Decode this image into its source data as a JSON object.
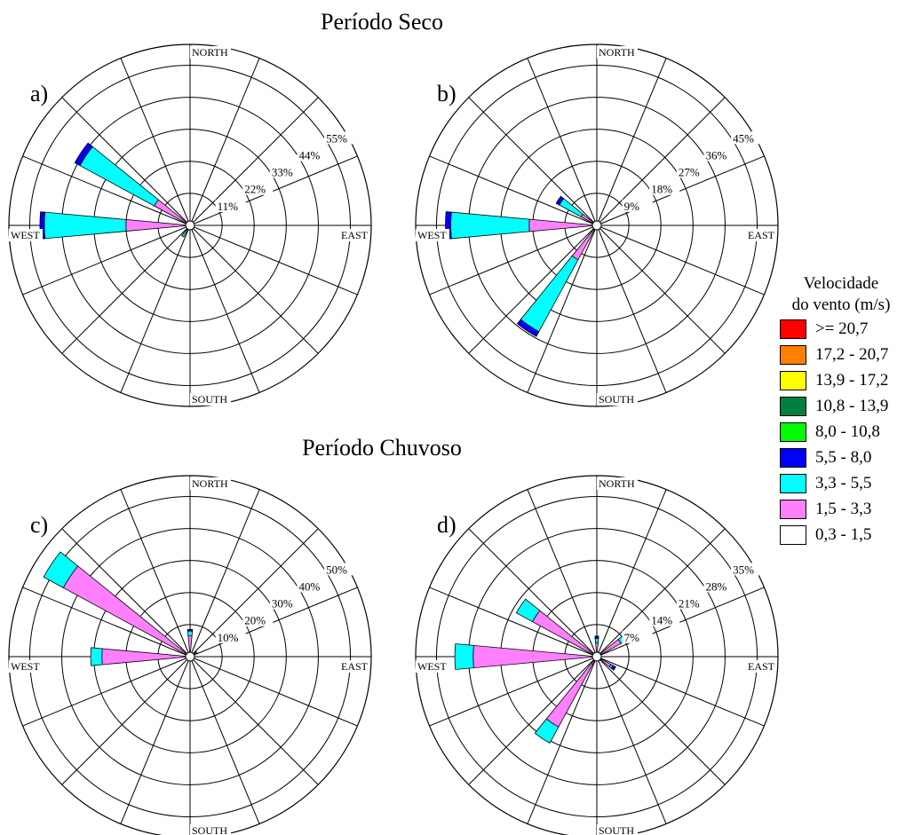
{
  "titles": {
    "dry": "Período Seco",
    "wet": "Período Chuvoso"
  },
  "legend": {
    "title_line1": "Velocidade",
    "title_line2": "do vento (m/s)",
    "items": [
      {
        "label": ">= 20,7",
        "color": "#ff0000"
      },
      {
        "label": "17,2 - 20,7",
        "color": "#ff7f00"
      },
      {
        "label": "13,9 - 17,2",
        "color": "#ffff00"
      },
      {
        "label": "10,8 - 13,9",
        "color": "#008040"
      },
      {
        "label": "8,0 - 10,8",
        "color": "#00ff00"
      },
      {
        "label": "5,5 - 8,0",
        "color": "#0000ff"
      },
      {
        "label": "3,3 - 5,5",
        "color": "#00ffff"
      },
      {
        "label": "1,5 - 3,3",
        "color": "#ff80ff"
      },
      {
        "label": "0,3 - 1,5",
        "color": "#ffffff"
      }
    ]
  },
  "chart_data": [
    {
      "type": "wind-rose",
      "panel_label": "a)",
      "direction_labels": {
        "north": "NORTH",
        "south": "SOUTH",
        "east": "EAST",
        "west": "WEST"
      },
      "ring_labels": [
        "11%",
        "22%",
        "33%",
        "44%",
        "55%"
      ],
      "max_percent": 55,
      "sectors": [
        {
          "direction_deg": 303.75,
          "bands": {
            "1,5 - 3,3": 14,
            "3,3 - 5,5": 29,
            "5,5 - 8,0": 2
          }
        },
        {
          "direction_deg": 270,
          "bands": {
            "1,5 - 3,3": 22,
            "3,3 - 5,5": 28,
            "5,5 - 8,0": 1.5
          }
        },
        {
          "direction_deg": 213.75,
          "bands": {
            "1,5 - 3,3": 1,
            "3,3 - 5,5": 3.5
          }
        }
      ]
    },
    {
      "type": "wind-rose",
      "panel_label": "b)",
      "direction_labels": {
        "north": "NORTH",
        "south": "SOUTH",
        "east": "EAST",
        "west": "WEST"
      },
      "ring_labels": [
        "9%",
        "18%",
        "27%",
        "36%",
        "45%"
      ],
      "max_percent": 45,
      "sectors": [
        {
          "direction_deg": 303.75,
          "bands": {
            "1,5 - 3,3": 5,
            "3,3 - 5,5": 7,
            "5,5 - 8,0": 1
          }
        },
        {
          "direction_deg": 270,
          "bands": {
            "1,5 - 3,3": 19,
            "3,3 - 5,5": 22,
            "5,5 - 8,0": 1.5
          }
        },
        {
          "direction_deg": 213.75,
          "bands": {
            "1,5 - 3,3": 11,
            "3,3 - 5,5": 23,
            "5,5 - 8,0": 1.5
          }
        }
      ]
    },
    {
      "type": "wind-rose",
      "panel_label": "c)",
      "direction_labels": {
        "north": "NORTH",
        "south": "SOUTH",
        "east": "EAST",
        "west": "WEST"
      },
      "ring_labels": [
        "10%",
        "20%",
        "30%",
        "40%",
        "50%"
      ],
      "max_percent": 50,
      "sectors": [
        {
          "direction_deg": 303.75,
          "bands": {
            "1,5 - 3,3": 45,
            "3,3 - 5,5": 7
          }
        },
        {
          "direction_deg": 270,
          "bands": {
            "1,5 - 3,3": 27,
            "3,3 - 5,5": 3.5,
            "0,3 - 1,5": 0.5
          }
        },
        {
          "direction_deg": 0,
          "bands": {
            "1,5 - 3,3": 6.5,
            "3,3 - 5,5": 1.5,
            "5,5 - 8,0": 0.5
          }
        },
        {
          "direction_deg": 56.25,
          "bands": {
            "1,5 - 3,3": 1.5,
            "3,3 - 5,5": 1
          }
        }
      ]
    },
    {
      "type": "wind-rose",
      "panel_label": "d)",
      "direction_labels": {
        "north": "NORTH",
        "south": "SOUTH",
        "east": "EAST",
        "west": "WEST"
      },
      "ring_labels": [
        "7%",
        "14%",
        "21%",
        "28%",
        "35%"
      ],
      "max_percent": 35,
      "sectors": [
        {
          "direction_deg": 303.75,
          "bands": {
            "1,5 - 3,3": 16,
            "3,3 - 5,5": 4
          }
        },
        {
          "direction_deg": 270,
          "bands": {
            "1,5 - 3,3": 27,
            "3,3 - 5,5": 4
          }
        },
        {
          "direction_deg": 213.75,
          "bands": {
            "1,5 - 3,3": 17.5,
            "3,3 - 5,5": 4
          }
        },
        {
          "direction_deg": 0,
          "bands": {
            "1,5 - 3,3": 3,
            "3,3 - 5,5": 1,
            "5,5 - 8,0": 0.5
          }
        },
        {
          "direction_deg": 56.25,
          "bands": {
            "1,5 - 3,3": 6,
            "3,3 - 5,5": 1.5,
            "5,5 - 8,0": 0.5
          }
        },
        {
          "direction_deg": 123.75,
          "bands": {
            "1,5 - 3,3": 3.5,
            "3,3 - 5,5": 0.5,
            "5,5 - 8,0": 0.7
          }
        }
      ]
    }
  ]
}
